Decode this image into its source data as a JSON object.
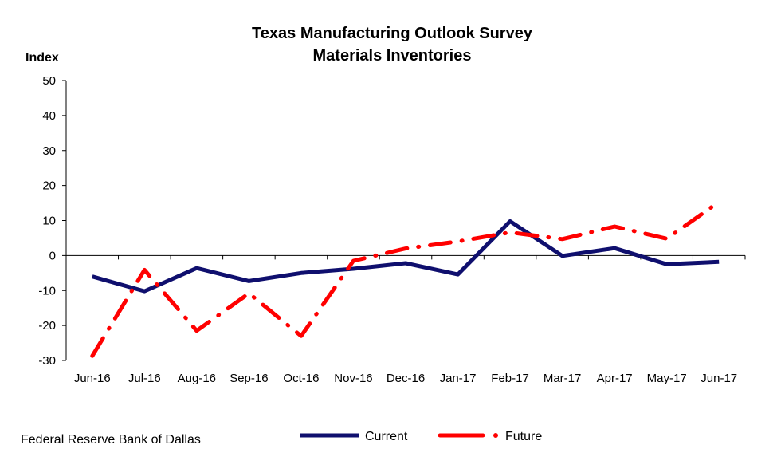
{
  "chart_data": {
    "type": "line",
    "title": "Texas Manufacturing Outlook Survey",
    "subtitle": "Materials Inventories",
    "ylabel": "Index",
    "xlabel": "",
    "ylim": [
      -30,
      50
    ],
    "yticks": [
      50,
      40,
      30,
      20,
      10,
      0,
      -10,
      -20,
      -30
    ],
    "categories": [
      "Jun-16",
      "Jul-16",
      "Aug-16",
      "Sep-16",
      "Oct-16",
      "Nov-16",
      "Dec-16",
      "Jan-17",
      "Feb-17",
      "Mar-17",
      "Apr-17",
      "May-17",
      "Jun-17"
    ],
    "series": [
      {
        "name": "Current",
        "color": "#0f0f6e",
        "style": "solid",
        "values": [
          -6.0,
          -10.2,
          -3.6,
          -7.3,
          -5.0,
          -3.8,
          -2.2,
          -5.4,
          9.8,
          -0.1,
          2.1,
          -2.5,
          -1.8
        ]
      },
      {
        "name": "Future",
        "color": "#ff0000",
        "style": "dash-dot",
        "values": [
          -28.7,
          -4.1,
          -21.5,
          -10.8,
          -23.0,
          -1.5,
          2.0,
          4.0,
          6.6,
          4.7,
          8.3,
          4.8,
          15.3
        ]
      }
    ],
    "legend_position": "bottom",
    "grid": false,
    "source": "Federal Reserve Bank of Dallas"
  }
}
